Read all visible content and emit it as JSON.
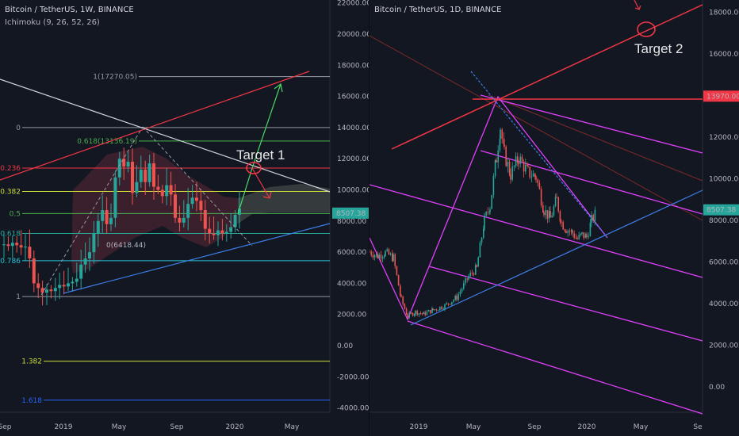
{
  "chart_data": [
    {
      "type": "candlestick",
      "title": "Bitcoin / TetherUS, 1W, BINANCE",
      "indicator": "Ichimoku (9, 26, 52, 26)",
      "y_ticks": [
        22000,
        20000,
        18000,
        16000,
        14000,
        12000,
        10000,
        8000,
        6000,
        4000,
        2000,
        0,
        -2000,
        -4000
      ],
      "x_ticks": [
        "Sep",
        "2019",
        "May",
        "Sep",
        "2020",
        "May"
      ],
      "last_price": "8507.38",
      "ylim": [
        -4500,
        22000
      ],
      "fib_levels": [
        {
          "label": "1(17270.05)",
          "price": 17270,
          "color": "#9598a1"
        },
        {
          "label": "0",
          "price": 14000,
          "color": "#9598a1"
        },
        {
          "label": "0.618(13136.19)",
          "price": 13136,
          "color": "#4caf50"
        },
        {
          "label": "0.236",
          "price": 11400,
          "color": "#f23645"
        },
        {
          "label": "0.382",
          "price": 9900,
          "color": "#cddc39"
        },
        {
          "label": "0.5",
          "price": 8480,
          "color": "#4caf50"
        },
        {
          "label": "0.618",
          "price": 7200,
          "color": "#26a69a"
        },
        {
          "label": "0.786",
          "price": 5450,
          "color": "#26c6da"
        },
        {
          "label": "1",
          "price": 3150,
          "color": "#9598a1"
        },
        {
          "label": "1.382",
          "price": -1000,
          "color": "#cddc39"
        },
        {
          "label": "1.618",
          "price": -3500,
          "color": "#2962ff"
        }
      ],
      "annotations": [
        "Target 1",
        "0(6418.44)"
      ]
    },
    {
      "type": "candlestick",
      "title": "Bitcoin / TetherUS, 1D, BINANCE",
      "y_ticks": [
        18000,
        16000,
        14000,
        12000,
        10000,
        8000,
        6000,
        4000,
        2000,
        0
      ],
      "x_ticks": [
        "2019",
        "May",
        "Sep",
        "2020",
        "May",
        "Se"
      ],
      "last_price": "8507.38",
      "marked_price": "13970.00",
      "ylim": [
        -1000,
        19000
      ],
      "annotations": [
        "Target 2"
      ]
    }
  ],
  "colors": {
    "bg": "#131722",
    "up": "#26a69a",
    "down": "#ef5350",
    "price_tag": "#26a69a",
    "mark_tag": "#f23645",
    "pitchfork": "#e040fb",
    "trend_red": "#f23645",
    "trend_blue": "#3d7ee6"
  }
}
